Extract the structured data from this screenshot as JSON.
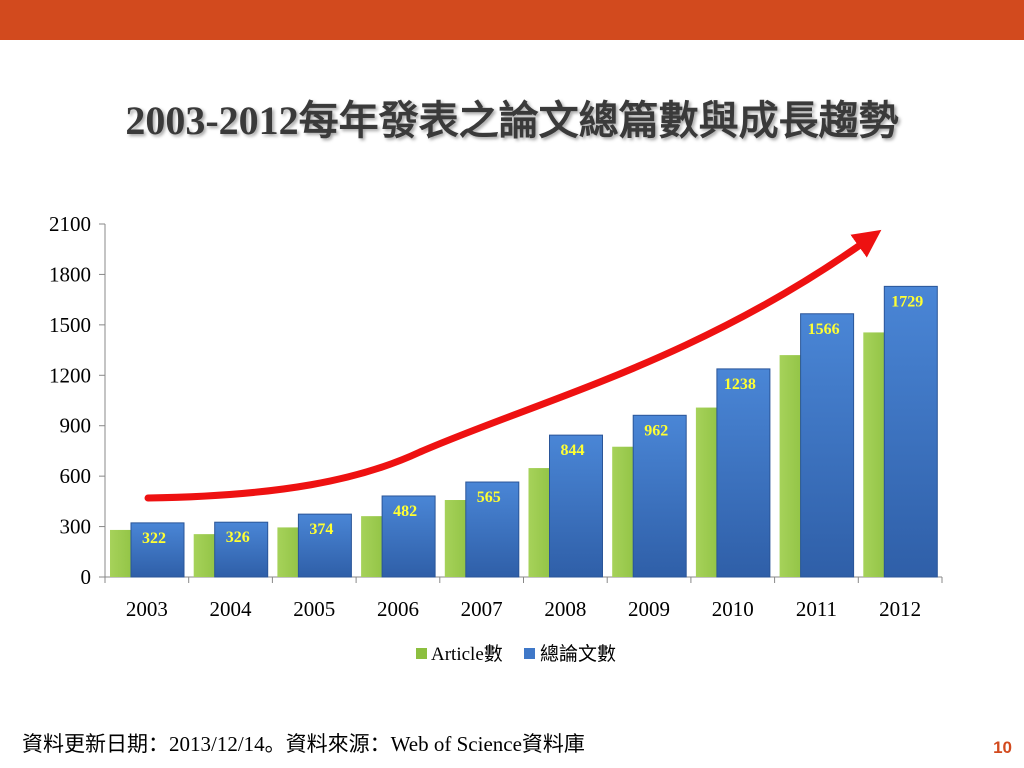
{
  "slide": {
    "title": "2003-2012每年發表之論文總篇數與成長趨勢",
    "source_note": "資料更新日期：2013/12/14。資料來源：Web of Science資料庫",
    "page_number": "10"
  },
  "colors": {
    "top_bar": "#D24A1E",
    "article_bar": "#8CBF3F",
    "total_bar": "#3F78C8",
    "data_label": "#FFFF33",
    "trend_arrow": "#EE1111",
    "page_number": "#D24A1E"
  },
  "chart_data": {
    "type": "bar",
    "categories": [
      "2003",
      "2004",
      "2005",
      "2006",
      "2007",
      "2008",
      "2009",
      "2010",
      "2011",
      "2012"
    ],
    "series": [
      {
        "name": "Article數",
        "values": [
          280,
          255,
          295,
          362,
          458,
          648,
          775,
          1008,
          1320,
          1455
        ]
      },
      {
        "name": "總論文數",
        "values": [
          322,
          326,
          374,
          482,
          565,
          844,
          962,
          1238,
          1566,
          1729
        ],
        "data_labels": true
      }
    ],
    "ylim": [
      0,
      2100
    ],
    "yticks": [
      0,
      300,
      600,
      900,
      1200,
      1500,
      1800,
      2100
    ],
    "legend": "bottom",
    "grid": false,
    "annotation": "upward-trend-arrow"
  }
}
